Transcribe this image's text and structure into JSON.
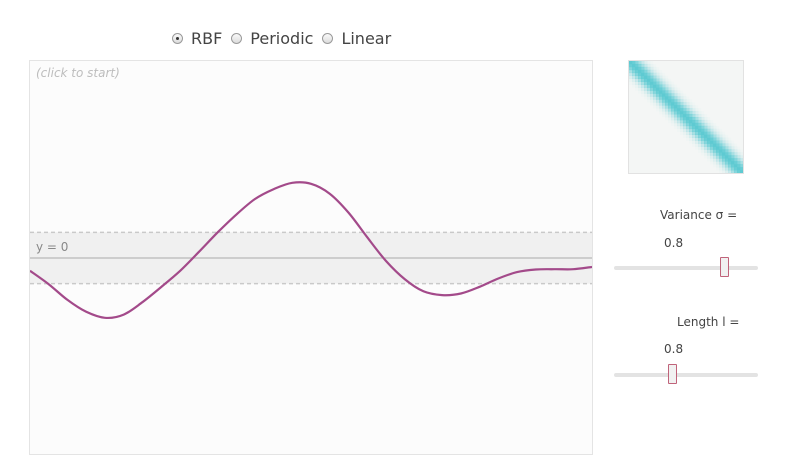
{
  "kernels": {
    "options": [
      {
        "label": "RBF",
        "checked": true
      },
      {
        "label": "Periodic",
        "checked": false
      },
      {
        "label": "Linear",
        "checked": false
      }
    ]
  },
  "plot": {
    "hint": "(click to start)",
    "zero_label": "y = 0",
    "colors": {
      "sample": "#a34a8a",
      "band": "#f0f0f0",
      "dashed": "#c9c9c9",
      "zero_line": "#b8b8b8"
    },
    "ylim": [
      -3,
      3
    ],
    "band": [
      -0.8,
      0.8
    ],
    "sample_y": [
      -0.4,
      -0.82,
      -1.31,
      -1.68,
      -1.87,
      -1.77,
      -1.38,
      -0.91,
      -0.41,
      0.18,
      0.79,
      1.35,
      1.84,
      2.15,
      2.35,
      2.32,
      2.01,
      1.42,
      0.65,
      -0.09,
      -0.66,
      -1.04,
      -1.16,
      -1.11,
      -0.9,
      -0.64,
      -0.44,
      -0.36,
      -0.35,
      -0.35,
      -0.28
    ]
  },
  "covariance": {
    "color": "#5ecad2",
    "length_scale": 0.8
  },
  "variance": {
    "label": "Variance σ =",
    "value": "0.8",
    "fraction": 0.77
  },
  "length": {
    "label": "Length l =",
    "value": "0.8",
    "fraction": 0.41
  }
}
